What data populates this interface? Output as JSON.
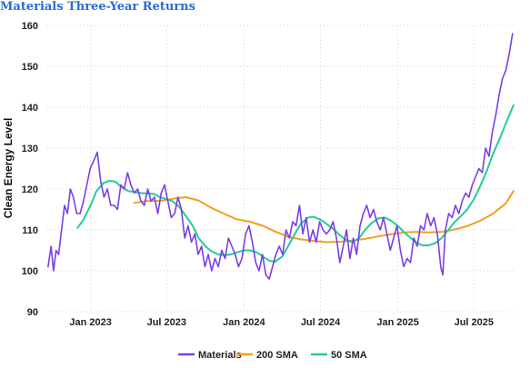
{
  "chart_data": {
    "type": "line",
    "title": "Materials Three-Year Returns",
    "xlabel": "",
    "ylabel": "Clean Energy Level",
    "x_range": [
      "2022-09-20",
      "2025-10-10"
    ],
    "ylim": [
      90,
      160
    ],
    "y_ticks": [
      90,
      100,
      110,
      120,
      130,
      140,
      150,
      160
    ],
    "x_ticks": [
      {
        "date": "2023-01-01",
        "label": "Jan 2023"
      },
      {
        "date": "2023-07-01",
        "label": "Jul 2023"
      },
      {
        "date": "2024-01-01",
        "label": "Jan 2024"
      },
      {
        "date": "2024-07-01",
        "label": "Jul 2024"
      },
      {
        "date": "2025-01-01",
        "label": "Jan 2025"
      },
      {
        "date": "2025-07-01",
        "label": "Jul 2025"
      }
    ],
    "grid": true,
    "legend_position": "bottom",
    "series": [
      {
        "name": "Materials",
        "color": "#7b3fe4",
        "points": [
          [
            "2022-09-22",
            101
          ],
          [
            "2022-09-29",
            106
          ],
          [
            "2022-10-05",
            100
          ],
          [
            "2022-10-11",
            105
          ],
          [
            "2022-10-17",
            104
          ],
          [
            "2022-10-24",
            110
          ],
          [
            "2022-10-31",
            116
          ],
          [
            "2022-11-07",
            114
          ],
          [
            "2022-11-14",
            120
          ],
          [
            "2022-11-21",
            118
          ],
          [
            "2022-11-29",
            114
          ],
          [
            "2022-12-07",
            114
          ],
          [
            "2022-12-15",
            117
          ],
          [
            "2022-12-23",
            121
          ],
          [
            "2022-12-31",
            125
          ],
          [
            "2023-01-09",
            127
          ],
          [
            "2023-01-17",
            129
          ],
          [
            "2023-01-25",
            122
          ],
          [
            "2023-02-02",
            118
          ],
          [
            "2023-02-10",
            120
          ],
          [
            "2023-02-18",
            116
          ],
          [
            "2023-02-26",
            116
          ],
          [
            "2023-03-06",
            115
          ],
          [
            "2023-03-14",
            121
          ],
          [
            "2023-03-22",
            120
          ],
          [
            "2023-03-30",
            124
          ],
          [
            "2023-04-07",
            121
          ],
          [
            "2023-04-15",
            119
          ],
          [
            "2023-04-23",
            120
          ],
          [
            "2023-05-01",
            117
          ],
          [
            "2023-05-09",
            116
          ],
          [
            "2023-05-17",
            120
          ],
          [
            "2023-05-25",
            117
          ],
          [
            "2023-06-02",
            118
          ],
          [
            "2023-06-10",
            114
          ],
          [
            "2023-06-18",
            119
          ],
          [
            "2023-06-26",
            121
          ],
          [
            "2023-07-04",
            117
          ],
          [
            "2023-07-12",
            113
          ],
          [
            "2023-07-20",
            114
          ],
          [
            "2023-07-28",
            118
          ],
          [
            "2023-08-05",
            115
          ],
          [
            "2023-08-13",
            108
          ],
          [
            "2023-08-21",
            111
          ],
          [
            "2023-08-29",
            107
          ],
          [
            "2023-09-06",
            109
          ],
          [
            "2023-09-14",
            104
          ],
          [
            "2023-09-22",
            106
          ],
          [
            "2023-09-30",
            101
          ],
          [
            "2023-10-08",
            104
          ],
          [
            "2023-10-16",
            100
          ],
          [
            "2023-10-24",
            103
          ],
          [
            "2023-11-01",
            101
          ],
          [
            "2023-11-09",
            105
          ],
          [
            "2023-11-17",
            103
          ],
          [
            "2023-11-25",
            108
          ],
          [
            "2023-12-03",
            106
          ],
          [
            "2023-12-11",
            104
          ],
          [
            "2023-12-19",
            101
          ],
          [
            "2023-12-27",
            103
          ],
          [
            "2024-01-05",
            109
          ],
          [
            "2024-01-13",
            111
          ],
          [
            "2024-01-21",
            107
          ],
          [
            "2024-01-29",
            102
          ],
          [
            "2024-02-06",
            100
          ],
          [
            "2024-02-14",
            104
          ],
          [
            "2024-02-22",
            99
          ],
          [
            "2024-03-01",
            98
          ],
          [
            "2024-03-09",
            101
          ],
          [
            "2024-03-17",
            104
          ],
          [
            "2024-03-25",
            106
          ],
          [
            "2024-04-02",
            104
          ],
          [
            "2024-04-10",
            110
          ],
          [
            "2024-04-18",
            108
          ],
          [
            "2024-04-26",
            112
          ],
          [
            "2024-05-04",
            111
          ],
          [
            "2024-05-12",
            116
          ],
          [
            "2024-05-20",
            109
          ],
          [
            "2024-05-28",
            113
          ],
          [
            "2024-06-05",
            107
          ],
          [
            "2024-06-13",
            110
          ],
          [
            "2024-06-21",
            107
          ],
          [
            "2024-06-29",
            112
          ],
          [
            "2024-07-07",
            110
          ],
          [
            "2024-07-15",
            109
          ],
          [
            "2024-07-23",
            110
          ],
          [
            "2024-07-31",
            112
          ],
          [
            "2024-08-08",
            108
          ],
          [
            "2024-08-16",
            102
          ],
          [
            "2024-08-24",
            106
          ],
          [
            "2024-09-01",
            110
          ],
          [
            "2024-09-09",
            103
          ],
          [
            "2024-09-17",
            108
          ],
          [
            "2024-09-25",
            104
          ],
          [
            "2024-10-03",
            111
          ],
          [
            "2024-10-11",
            114
          ],
          [
            "2024-10-19",
            116
          ],
          [
            "2024-10-27",
            113
          ],
          [
            "2024-11-04",
            115
          ],
          [
            "2024-11-12",
            112
          ],
          [
            "2024-11-20",
            110
          ],
          [
            "2024-11-28",
            113
          ],
          [
            "2024-12-06",
            109
          ],
          [
            "2024-12-14",
            105
          ],
          [
            "2024-12-22",
            108
          ],
          [
            "2024-12-30",
            111
          ],
          [
            "2025-01-07",
            105
          ],
          [
            "2025-01-15",
            101
          ],
          [
            "2025-01-23",
            103
          ],
          [
            "2025-01-31",
            102
          ],
          [
            "2025-02-08",
            108
          ],
          [
            "2025-02-16",
            106
          ],
          [
            "2025-02-24",
            111
          ],
          [
            "2025-03-04",
            110
          ],
          [
            "2025-03-12",
            114
          ],
          [
            "2025-03-20",
            111
          ],
          [
            "2025-03-28",
            113
          ],
          [
            "2025-04-05",
            109
          ],
          [
            "2025-04-13",
            101
          ],
          [
            "2025-04-18",
            99
          ],
          [
            "2025-04-24",
            110
          ],
          [
            "2025-05-02",
            114
          ],
          [
            "2025-05-10",
            113
          ],
          [
            "2025-05-18",
            116
          ],
          [
            "2025-05-26",
            114
          ],
          [
            "2025-06-03",
            117
          ],
          [
            "2025-06-11",
            119
          ],
          [
            "2025-06-19",
            118
          ],
          [
            "2025-06-27",
            121
          ],
          [
            "2025-07-05",
            123
          ],
          [
            "2025-07-13",
            125
          ],
          [
            "2025-07-21",
            124
          ],
          [
            "2025-07-29",
            130
          ],
          [
            "2025-08-06",
            128
          ],
          [
            "2025-08-14",
            134
          ],
          [
            "2025-08-22",
            138
          ],
          [
            "2025-08-30",
            143
          ],
          [
            "2025-09-07",
            147
          ],
          [
            "2025-09-15",
            149
          ],
          [
            "2025-09-23",
            153
          ],
          [
            "2025-10-01",
            158
          ]
        ]
      },
      {
        "name": "200 SMA",
        "color": "#f0a020",
        "points": [
          [
            "2023-04-15",
            116.6
          ],
          [
            "2023-05-15",
            117.1
          ],
          [
            "2023-06-15",
            117.1
          ],
          [
            "2023-07-15",
            117.6
          ],
          [
            "2023-08-15",
            118.0
          ],
          [
            "2023-09-15",
            117.2
          ],
          [
            "2023-10-15",
            115.4
          ],
          [
            "2023-11-15",
            113.9
          ],
          [
            "2023-12-15",
            112.6
          ],
          [
            "2024-01-15",
            112.0
          ],
          [
            "2024-02-15",
            111.0
          ],
          [
            "2024-03-15",
            109.6
          ],
          [
            "2024-04-15",
            108.3
          ],
          [
            "2024-05-15",
            107.7
          ],
          [
            "2024-06-15",
            107.3
          ],
          [
            "2024-07-15",
            107.0
          ],
          [
            "2024-08-15",
            107.1
          ],
          [
            "2024-09-15",
            107.4
          ],
          [
            "2024-10-15",
            107.8
          ],
          [
            "2024-11-15",
            108.4
          ],
          [
            "2024-12-15",
            108.9
          ],
          [
            "2025-01-15",
            109.4
          ],
          [
            "2025-02-15",
            109.5
          ],
          [
            "2025-03-15",
            109.4
          ],
          [
            "2025-04-15",
            109.5
          ],
          [
            "2025-05-15",
            110.1
          ],
          [
            "2025-06-15",
            110.9
          ],
          [
            "2025-07-15",
            112.2
          ],
          [
            "2025-08-15",
            113.9
          ],
          [
            "2025-09-15",
            116.5
          ],
          [
            "2025-10-03",
            119.5
          ]
        ]
      },
      {
        "name": "50 SMA",
        "color": "#22cc99",
        "points": [
          [
            "2022-12-01",
            110.5
          ],
          [
            "2022-12-15",
            112.5
          ],
          [
            "2023-01-01",
            116.0
          ],
          [
            "2023-01-15",
            119.5
          ],
          [
            "2023-02-01",
            121.5
          ],
          [
            "2023-02-15",
            122.0
          ],
          [
            "2023-03-01",
            121.8
          ],
          [
            "2023-03-15",
            120.5
          ],
          [
            "2023-04-01",
            119.5
          ],
          [
            "2023-05-01",
            119.0
          ],
          [
            "2023-06-01",
            118.8
          ],
          [
            "2023-06-15",
            118.0
          ],
          [
            "2023-07-01",
            117.5
          ],
          [
            "2023-07-15",
            117.0
          ],
          [
            "2023-08-01",
            115.5
          ],
          [
            "2023-08-15",
            113.5
          ],
          [
            "2023-09-01",
            111.0
          ],
          [
            "2023-09-15",
            108.0
          ],
          [
            "2023-10-01",
            106.0
          ],
          [
            "2023-10-15",
            104.8
          ],
          [
            "2023-11-01",
            104.0
          ],
          [
            "2023-11-15",
            103.8
          ],
          [
            "2023-12-01",
            104.0
          ],
          [
            "2023-12-15",
            104.5
          ],
          [
            "2024-01-01",
            105.0
          ],
          [
            "2024-01-15",
            105.0
          ],
          [
            "2024-02-01",
            104.5
          ],
          [
            "2024-02-15",
            103.5
          ],
          [
            "2024-03-01",
            102.5
          ],
          [
            "2024-03-15",
            102.2
          ],
          [
            "2024-04-01",
            103.5
          ],
          [
            "2024-04-15",
            106.0
          ],
          [
            "2024-05-01",
            109.0
          ],
          [
            "2024-05-15",
            111.5
          ],
          [
            "2024-06-01",
            113.0
          ],
          [
            "2024-06-15",
            113.2
          ],
          [
            "2024-07-01",
            112.5
          ],
          [
            "2024-07-15",
            111.5
          ],
          [
            "2024-08-01",
            110.2
          ],
          [
            "2024-08-15",
            108.8
          ],
          [
            "2024-09-01",
            107.5
          ],
          [
            "2024-09-15",
            107.0
          ],
          [
            "2024-10-01",
            108.0
          ],
          [
            "2024-10-15",
            110.0
          ],
          [
            "2024-11-01",
            111.8
          ],
          [
            "2024-11-15",
            112.8
          ],
          [
            "2024-12-01",
            113.0
          ],
          [
            "2024-12-15",
            112.3
          ],
          [
            "2025-01-01",
            111.0
          ],
          [
            "2025-01-15",
            109.5
          ],
          [
            "2025-02-01",
            108.0
          ],
          [
            "2025-02-15",
            106.8
          ],
          [
            "2025-03-01",
            106.2
          ],
          [
            "2025-03-15",
            106.2
          ],
          [
            "2025-04-01",
            106.8
          ],
          [
            "2025-04-15",
            108.0
          ],
          [
            "2025-05-01",
            110.0
          ],
          [
            "2025-05-15",
            111.8
          ],
          [
            "2025-06-01",
            113.5
          ],
          [
            "2025-06-15",
            115.0
          ],
          [
            "2025-07-01",
            117.5
          ],
          [
            "2025-07-15",
            120.5
          ],
          [
            "2025-08-01",
            124.5
          ],
          [
            "2025-08-15",
            128.5
          ],
          [
            "2025-09-01",
            132.5
          ],
          [
            "2025-09-15",
            136.0
          ],
          [
            "2025-10-03",
            140.5
          ]
        ]
      }
    ]
  }
}
